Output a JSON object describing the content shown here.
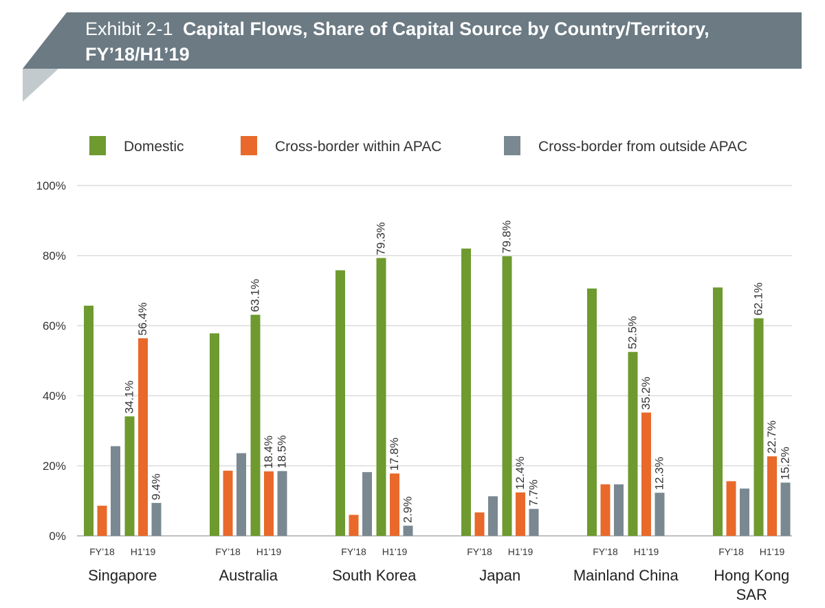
{
  "exhibit": "Exhibit 2-1",
  "title_line1": "Capital Flows, Share of Capital Source by Country/Territory,",
  "title_line2": "FY’18/H1’19",
  "colors": {
    "banner": "#6b7a83",
    "banner_shadow": "#c3cace",
    "Domestic": "#6e9a2f",
    "Cross-border within APAC": "#e8692a",
    "Cross-border from outside APAC": "#7a8891",
    "grid": "#c8c8c8"
  },
  "chart_data": {
    "type": "bar",
    "title": "Capital Flows, Share of Capital Source by Country/Territory, FY’18/H1’19",
    "ylim": [
      0,
      100
    ],
    "yticks": [
      "0%",
      "20%",
      "40%",
      "60%",
      "80%",
      "100%"
    ],
    "ytick_values": [
      0,
      20,
      40,
      60,
      80,
      100
    ],
    "grid": true,
    "legend_position": "top",
    "series_names": [
      "Domestic",
      "Cross-border within APAC",
      "Cross-border from outside APAC"
    ],
    "periods": [
      "FY’18",
      "H1’19"
    ],
    "groups": [
      {
        "country": "Singapore",
        "bars": [
          {
            "period": "FY’18",
            "values": [
              65.7,
              8.6,
              25.6
            ],
            "labels": [
              "",
              "",
              ""
            ]
          },
          {
            "period": "H1’19",
            "values": [
              34.1,
              56.4,
              9.4
            ],
            "labels": [
              "34.1%",
              "56.4%",
              "9.4%"
            ]
          }
        ]
      },
      {
        "country": "Australia",
        "bars": [
          {
            "period": "FY’18",
            "values": [
              57.8,
              18.6,
              23.6
            ],
            "labels": [
              "",
              "",
              ""
            ]
          },
          {
            "period": "H1’19",
            "values": [
              63.1,
              18.4,
              18.5
            ],
            "labels": [
              "63.1%",
              "18.4%",
              "18.5%"
            ]
          }
        ]
      },
      {
        "country": "South Korea",
        "bars": [
          {
            "period": "FY’18",
            "values": [
              75.8,
              6.0,
              18.2
            ],
            "labels": [
              "",
              "",
              ""
            ]
          },
          {
            "period": "H1’19",
            "values": [
              79.3,
              17.8,
              2.9
            ],
            "labels": [
              "79.3%",
              "17.8%",
              "2.9%"
            ]
          }
        ]
      },
      {
        "country": "Japan",
        "bars": [
          {
            "period": "FY’18",
            "values": [
              82.0,
              6.7,
              11.3
            ],
            "labels": [
              "",
              "",
              ""
            ]
          },
          {
            "period": "H1’19",
            "values": [
              79.8,
              12.4,
              7.7
            ],
            "labels": [
              "79.8%",
              "12.4%",
              "7.7%"
            ]
          }
        ]
      },
      {
        "country": "Mainland China",
        "bars": [
          {
            "period": "FY’18",
            "values": [
              70.6,
              14.7,
              14.7
            ],
            "labels": [
              "",
              "",
              ""
            ]
          },
          {
            "period": "H1’19",
            "values": [
              52.5,
              35.2,
              12.3
            ],
            "labels": [
              "52.5%",
              "35.2%",
              "12.3%"
            ]
          }
        ]
      },
      {
        "country_lines": [
          "Hong Kong",
          "SAR"
        ],
        "bars": [
          {
            "period": "FY’18",
            "values": [
              70.9,
              15.6,
              13.5
            ],
            "labels": [
              "",
              "",
              ""
            ]
          },
          {
            "period": "H1’19",
            "values": [
              62.1,
              22.7,
              15.2
            ],
            "labels": [
              "62.1%",
              "22.7%",
              "15.2%"
            ]
          }
        ]
      }
    ]
  }
}
